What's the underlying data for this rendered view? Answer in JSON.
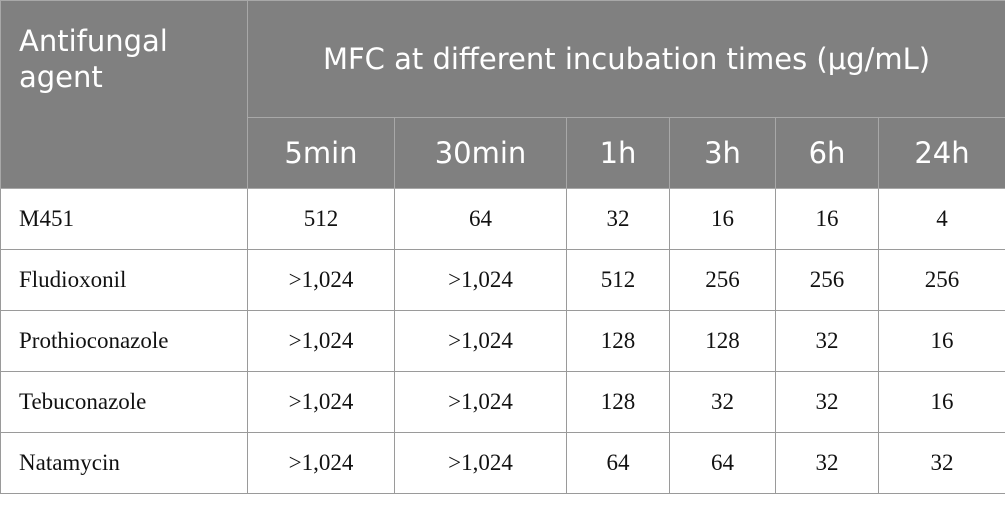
{
  "table": {
    "header": {
      "agent": "Antifungal agent",
      "group": "MFC at different incubation times (μg/mL)"
    },
    "columns": [
      "5min",
      "30min",
      "1h",
      "3h",
      "6h",
      "24h"
    ],
    "rows": [
      {
        "label": "M451",
        "values": [
          "512",
          "64",
          "32",
          "16",
          "16",
          "4"
        ]
      },
      {
        "label": "Fludioxonil",
        "values": [
          ">1,024",
          ">1,024",
          "512",
          "256",
          "256",
          "256"
        ]
      },
      {
        "label": "Prothioconazole",
        "values": [
          ">1,024",
          ">1,024",
          "128",
          "128",
          "32",
          "16"
        ]
      },
      {
        "label": "Tebuconazole",
        "values": [
          ">1,024",
          ">1,024",
          "128",
          "32",
          "32",
          "16"
        ]
      },
      {
        "label": "Natamycin",
        "values": [
          ">1,024",
          ">1,024",
          "64",
          "64",
          "32",
          "32"
        ]
      }
    ]
  }
}
